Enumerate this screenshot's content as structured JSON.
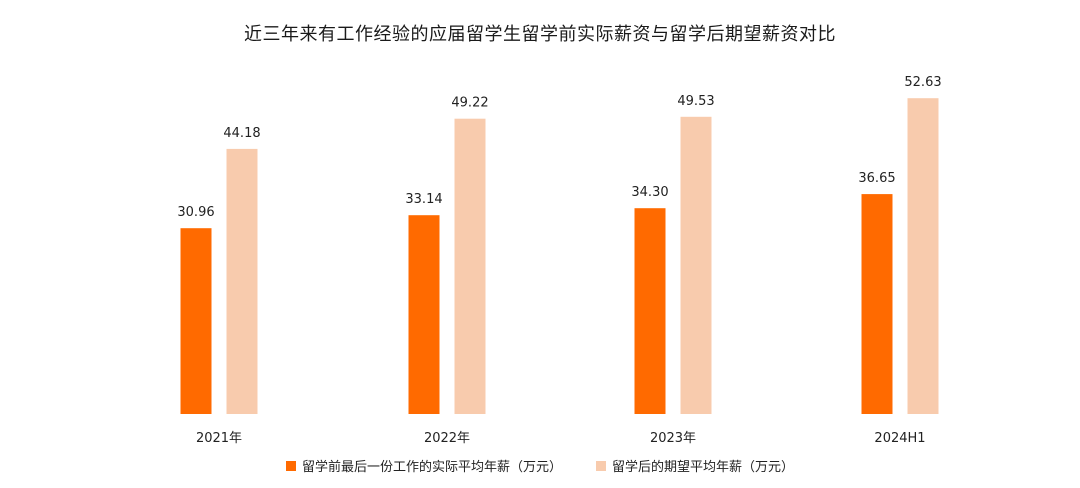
{
  "chart_data": {
    "type": "bar",
    "title": "近三年来有工作经验的应届留学生留学前实际薪资与留学后期望薪资对比",
    "categories": [
      "2021年",
      "2022年",
      "2023年",
      "2024H1"
    ],
    "series": [
      {
        "name": "留学前最后一份工作的实际平均年薪（万元）",
        "color": "#ff6a00",
        "values": [
          30.96,
          33.14,
          34.3,
          36.65
        ]
      },
      {
        "name": "留学后的期望平均年薪（万元）",
        "color": "#f8cbad",
        "values": [
          44.18,
          49.22,
          49.53,
          52.63
        ]
      }
    ],
    "ylim": [
      0,
      60
    ],
    "grid": false,
    "legend_position": "bottom-center",
    "show_value_labels": true
  }
}
